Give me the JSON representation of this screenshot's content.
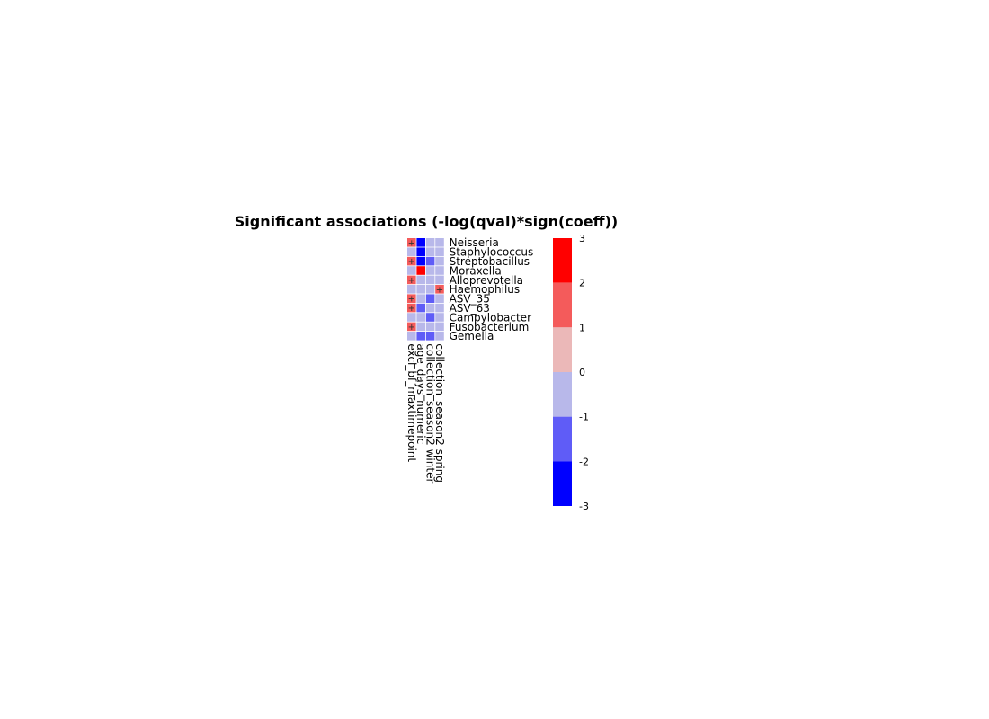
{
  "chart_data": {
    "type": "heatmap",
    "title": "Significant associations (-log(qval)*sign(coeff))",
    "rows": [
      "Neisseria",
      "Staphylococcus",
      "Streptobacillus",
      "Moraxella",
      "Alloprevotella",
      "Haemophilus",
      "ASV_35",
      "ASV_63",
      "Campylobacter",
      "Fusobacterium",
      "Gemella"
    ],
    "columns": [
      "excl_bf_maxtimepoint",
      "age_days_numeric",
      "collection_season2 winter",
      "collection_season2 spring"
    ],
    "values": [
      [
        1.5,
        -2.5,
        -0.5,
        -0.5
      ],
      [
        -0.5,
        -2.5,
        -0.5,
        -0.5
      ],
      [
        1.5,
        -2.5,
        -1.5,
        -0.5
      ],
      [
        -0.5,
        2.5,
        -0.5,
        -0.5
      ],
      [
        1.5,
        -0.5,
        -0.5,
        -0.5
      ],
      [
        -0.5,
        -0.5,
        -0.5,
        1.5
      ],
      [
        1.5,
        -0.5,
        -1.5,
        -0.5
      ],
      [
        1.5,
        -1.5,
        -0.5,
        -0.5
      ],
      [
        -0.5,
        -0.5,
        -1.5,
        -0.5
      ],
      [
        1.5,
        -0.5,
        -0.5,
        -0.5
      ],
      [
        -0.5,
        -1.5,
        -1.5,
        -0.5
      ]
    ],
    "significance_marks": [
      [
        0,
        0,
        "+"
      ],
      [
        2,
        0,
        "+"
      ],
      [
        4,
        0,
        "+"
      ],
      [
        5,
        3,
        "+"
      ],
      [
        6,
        0,
        "+"
      ],
      [
        7,
        0,
        "+"
      ],
      [
        9,
        0,
        "+"
      ]
    ],
    "colorbar": {
      "ticks": [
        "3",
        "2",
        "1",
        "0",
        "-1",
        "-2",
        "-3"
      ],
      "range": [
        -3,
        3
      ],
      "bins": [
        {
          "from": 2,
          "to": 3,
          "color": "#ff0000"
        },
        {
          "from": 1,
          "to": 2,
          "color": "#f45b5b"
        },
        {
          "from": 0,
          "to": 1,
          "color": "#ebb8b8"
        },
        {
          "from": -1,
          "to": 0,
          "color": "#b8b8ea"
        },
        {
          "from": -2,
          "to": -1,
          "color": "#5f5cf7"
        },
        {
          "from": -3,
          "to": -2,
          "color": "#0000ff"
        }
      ]
    }
  }
}
